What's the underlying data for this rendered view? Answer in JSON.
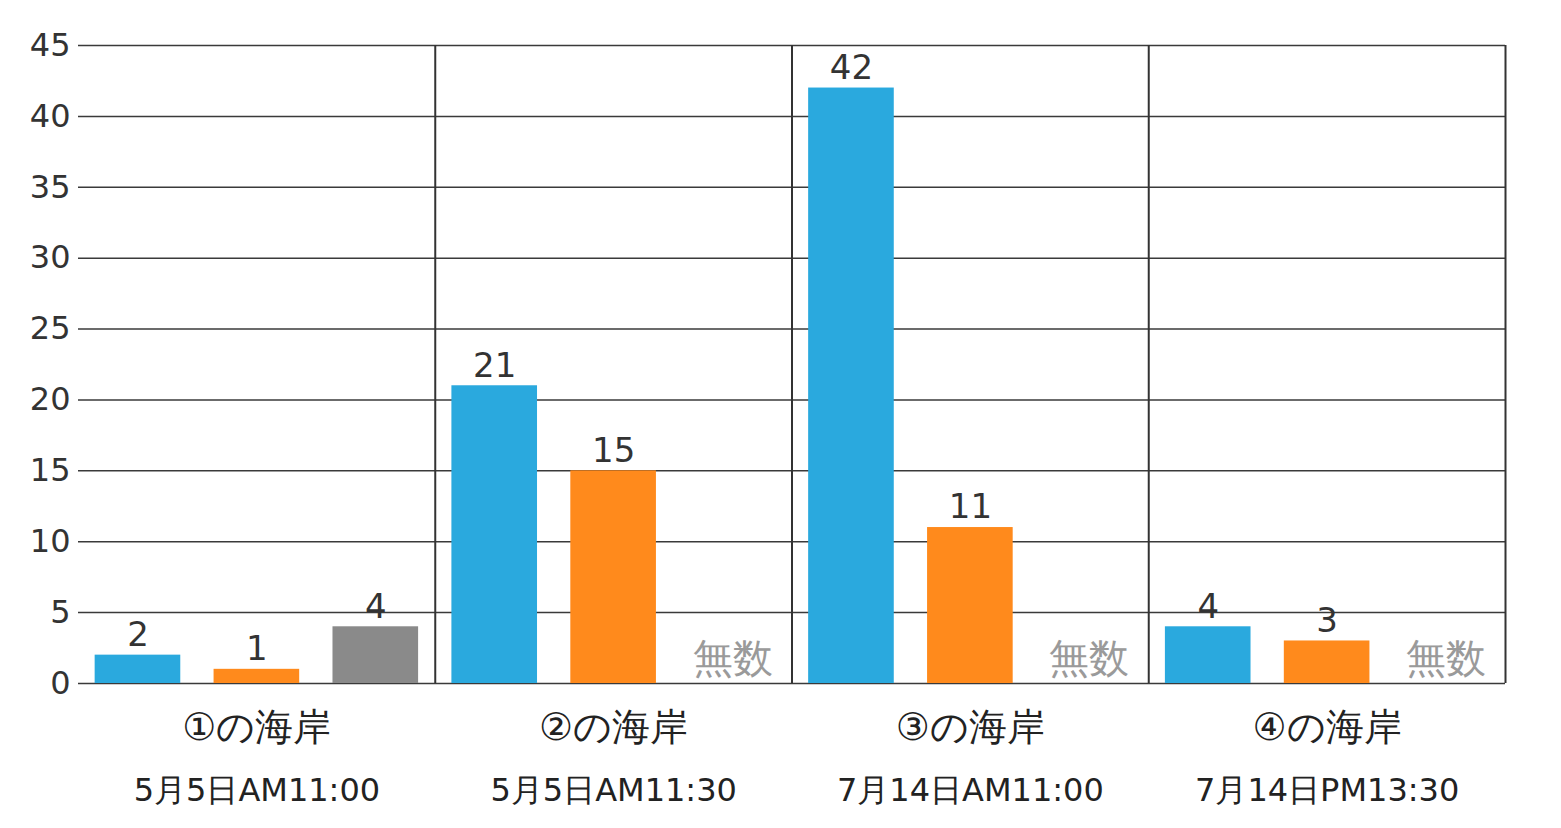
{
  "chart_data": {
    "type": "bar",
    "categories": [
      "①の海岸",
      "②の海岸",
      "③の海岸",
      "④の海岸"
    ],
    "category_dates": [
      "5月5日AM11:00",
      "5月5日AM11:30",
      "7月14日AM11:00",
      "7月14日PM13:30"
    ],
    "series": [
      {
        "color": "#2aa9de",
        "values": [
          2,
          21,
          42,
          4
        ]
      },
      {
        "color": "#ff8a1c",
        "values": [
          1,
          15,
          11,
          3
        ]
      },
      {
        "color": "#8a8a8a",
        "values": [
          4,
          null,
          null,
          null
        ],
        "value_labels": [
          "4",
          "無数",
          "無数",
          "無数"
        ]
      }
    ],
    "ylim": [
      0,
      45
    ],
    "yticks": [
      0,
      5,
      10,
      15,
      20,
      25,
      30,
      35,
      40,
      45
    ],
    "grid": true,
    "data_labels": true
  }
}
